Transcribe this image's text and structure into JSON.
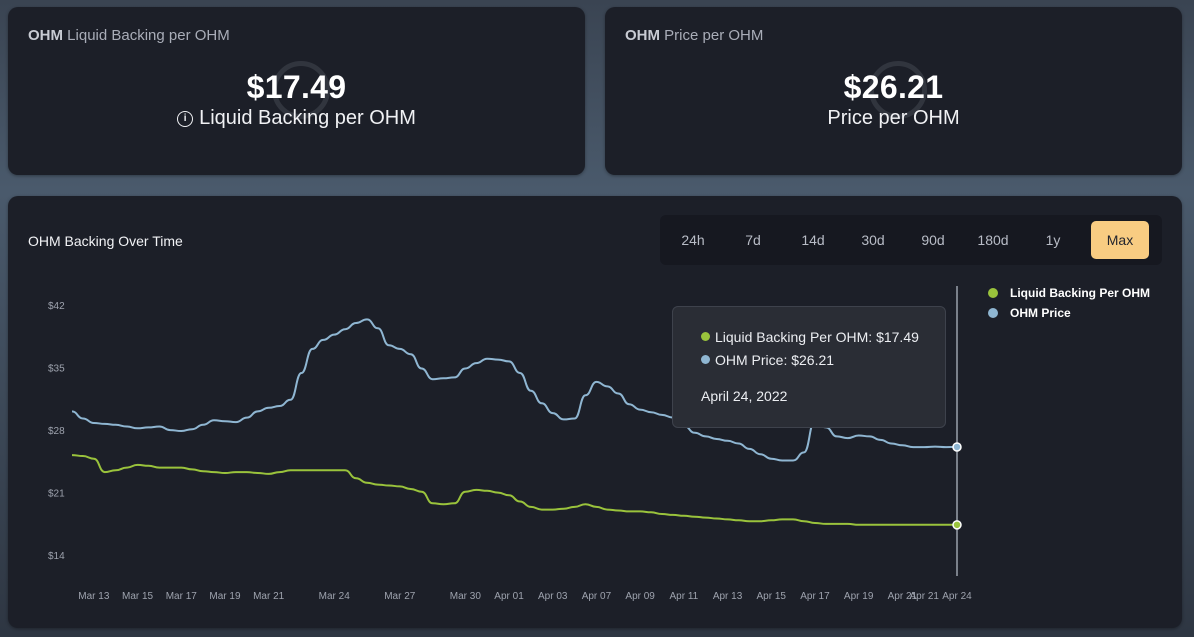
{
  "backing_card": {
    "title_bold": "OHM",
    "title_rest": "Liquid Backing per OHM",
    "value": "$17.49",
    "label": "Liquid Backing per OHM",
    "info_icon": "info-icon"
  },
  "price_card": {
    "title_bold": "OHM",
    "title_rest": "Price per OHM",
    "value": "$26.21",
    "label": "Price per OHM"
  },
  "chart_card": {
    "title": "OHM Backing Over Time",
    "ranges": [
      "24h",
      "7d",
      "14d",
      "30d",
      "90d",
      "180d",
      "1y",
      "Max"
    ],
    "active_range": "Max",
    "legend": [
      {
        "name": "Liquid Backing Per OHM",
        "color": "#9ac33c"
      },
      {
        "name": "OHM Price",
        "color": "#8fb6d2"
      }
    ],
    "tooltip": {
      "backing": "Liquid Backing Per OHM: $17.49",
      "price": "OHM Price: $26.21",
      "date": "April 24, 2022"
    }
  },
  "chart_data": {
    "type": "line",
    "title": "OHM Backing Over Time",
    "xlabel": "",
    "ylabel": "",
    "ylim": [
      12,
      44
    ],
    "yticks": [
      14,
      21,
      28,
      35,
      42
    ],
    "ytick_labels": [
      "$14",
      "$21",
      "$28",
      "$35",
      "$42"
    ],
    "x": [
      0,
      1,
      2,
      3,
      4,
      5,
      6,
      7,
      8,
      9,
      10,
      11,
      12,
      13,
      14,
      15,
      16,
      17,
      18,
      19,
      20,
      21,
      22,
      23,
      24,
      25,
      26,
      27,
      28,
      29,
      30,
      31,
      32,
      33,
      34,
      35,
      36,
      37,
      38,
      39,
      40,
      41,
      42,
      43,
      44,
      45,
      46,
      47,
      48,
      49,
      50,
      51,
      52,
      53,
      54,
      55,
      56,
      57,
      58,
      59,
      60,
      61,
      62,
      63,
      64,
      65,
      66,
      67,
      68,
      69,
      70,
      71,
      72,
      73,
      74,
      75,
      76,
      77,
      78,
      79,
      80,
      81
    ],
    "xticks": [
      2,
      6,
      10,
      14,
      18,
      24,
      30,
      36,
      40,
      44,
      48,
      52,
      56,
      60,
      64,
      68,
      72,
      76,
      78,
      81
    ],
    "xtick_labels": [
      "Mar 13",
      "Mar 15",
      "Mar 17",
      "Mar 19",
      "Mar 21",
      "Mar 24",
      "Mar 27",
      "Mar 30",
      "Apr 01",
      "Apr 03",
      "Apr 07",
      "Apr 09",
      "Apr 11",
      "Apr 13",
      "Apr 15",
      "Apr 17",
      "Apr 19",
      "Apr 21",
      "Apr 21",
      "Apr 24"
    ],
    "legend_position": "right",
    "grid": false,
    "series": [
      {
        "name": "OHM Price",
        "color": "#8fb6d2",
        "values": [
          30.2,
          29.4,
          28.9,
          28.8,
          28.7,
          28.5,
          28.3,
          28.4,
          28.5,
          28.1,
          28.0,
          28.2,
          28.7,
          29.2,
          29.1,
          29.0,
          29.5,
          30.2,
          30.6,
          30.8,
          31.5,
          34.5,
          37.2,
          38.2,
          38.8,
          39.4,
          40.1,
          40.5,
          39.5,
          37.6,
          37.2,
          36.6,
          35.0,
          33.8,
          33.9,
          34.0,
          35.0,
          35.6,
          36.1,
          36.0,
          35.8,
          34.5,
          32.5,
          31.1,
          30.0,
          29.3,
          29.4,
          32.0,
          33.5,
          33.0,
          32.2,
          31.0,
          30.4,
          30.1,
          29.8,
          29.5,
          28.6,
          27.8,
          27.4,
          27.1,
          26.9,
          26.6,
          26.0,
          25.4,
          24.9,
          24.7,
          24.7,
          25.6,
          29.2,
          28.4,
          27.4,
          27.2,
          27.5,
          27.4,
          27.0,
          26.6,
          26.4,
          26.2,
          26.2,
          26.25,
          26.2,
          26.21
        ]
      },
      {
        "name": "Liquid Backing Per OHM",
        "color": "#9ac33c",
        "values": [
          25.3,
          25.2,
          24.9,
          23.4,
          23.6,
          23.9,
          24.2,
          24.1,
          23.9,
          23.9,
          23.9,
          23.7,
          23.5,
          23.4,
          23.3,
          23.4,
          23.4,
          23.3,
          23.2,
          23.4,
          23.6,
          23.6,
          23.6,
          23.6,
          23.6,
          23.6,
          22.7,
          22.2,
          22.0,
          21.9,
          21.8,
          21.5,
          21.2,
          19.9,
          19.8,
          19.9,
          21.2,
          21.4,
          21.3,
          21.1,
          20.8,
          20.1,
          19.5,
          19.2,
          19.2,
          19.3,
          19.5,
          19.8,
          19.5,
          19.2,
          19.1,
          19.0,
          19.0,
          18.9,
          18.7,
          18.6,
          18.5,
          18.4,
          18.3,
          18.2,
          18.1,
          18.0,
          17.9,
          17.9,
          18.0,
          18.1,
          18.1,
          17.9,
          17.7,
          17.6,
          17.6,
          17.6,
          17.5,
          17.5,
          17.5,
          17.5,
          17.5,
          17.5,
          17.5,
          17.49,
          17.49,
          17.49
        ]
      }
    ],
    "hover_index": 81
  }
}
